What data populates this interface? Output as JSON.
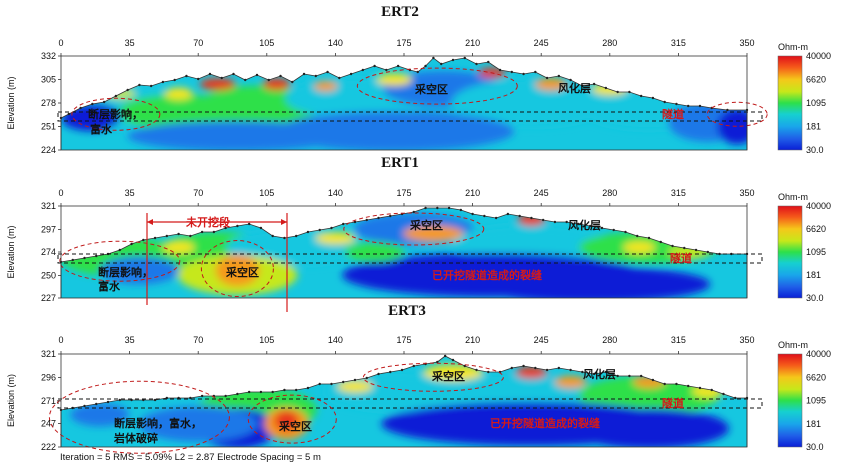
{
  "chart_data": [
    {
      "type": "heatmap",
      "title": "ERT2",
      "ylabel": "Elevation (m)",
      "x_ticks": [
        "0",
        "35",
        "70",
        "105",
        "140",
        "175",
        "210",
        "245",
        "280",
        "315",
        "350"
      ],
      "y_ticks": [
        "332",
        "305",
        "278",
        "251",
        "224"
      ],
      "ylim": [
        224,
        332
      ],
      "xlim": [
        0,
        350
      ],
      "colorbar_unit": "Ohm-m",
      "colorbar_ticks": [
        "40000",
        "6620",
        "1095",
        "181",
        "30.0"
      ],
      "annotations": {
        "goaf": "采空区",
        "weathered": "风化层",
        "fault": "断层影响，",
        "fault2": "富水",
        "tunnel": "隧道"
      }
    },
    {
      "type": "heatmap",
      "title": "ERT1",
      "ylabel": "Elevation (m)",
      "x_ticks": [
        "0",
        "35",
        "70",
        "105",
        "140",
        "175",
        "210",
        "245",
        "280",
        "315",
        "350"
      ],
      "y_ticks": [
        "321",
        "297",
        "274",
        "250",
        "227"
      ],
      "ylim": [
        227,
        321
      ],
      "xlim": [
        0,
        350
      ],
      "colorbar_unit": "Ohm-m",
      "colorbar_ticks": [
        "40000",
        "6620",
        "1095",
        "181",
        "30.0"
      ],
      "annotations": {
        "unexcavated": "未开挖段",
        "goaf_top": "采空区",
        "weathered": "风化层",
        "fault": "断层影响，",
        "fault2": "富水",
        "goaf_low": "采空区",
        "tunnel": "隧道",
        "excavated": "已开挖隧道造成的裂缝"
      }
    },
    {
      "type": "heatmap",
      "title": "ERT3",
      "ylabel": "Elevation (m)",
      "x_ticks": [
        "0",
        "35",
        "70",
        "105",
        "140",
        "175",
        "210",
        "245",
        "280",
        "315",
        "350"
      ],
      "y_ticks": [
        "321",
        "296",
        "271",
        "247",
        "222"
      ],
      "ylim": [
        222,
        321
      ],
      "xlim": [
        0,
        350
      ],
      "colorbar_unit": "Ohm-m",
      "colorbar_ticks": [
        "40000",
        "6620",
        "1095",
        "181",
        "30.0"
      ],
      "annotations": {
        "goaf_top": "采空区",
        "weathered": "风化层",
        "fault": "断层影响，富水，",
        "fault2": "岩体破碎",
        "goaf_low": "采空区",
        "tunnel": "隧道",
        "excavated": "已开挖隧道造成的裂缝"
      }
    }
  ],
  "footer": "Iteration = 5    RMS = 5.09%    L2 = 2.87    Electrode Spacing = 5 m",
  "colors": {
    "scale": [
      "#0a1fd6",
      "#1f78e8",
      "#16c7e0",
      "#2de04a",
      "#c6e81a",
      "#f5e61a",
      "#f59a1a",
      "#e8371a",
      "#e0101a"
    ],
    "annotation_red": "#d41a1a"
  }
}
